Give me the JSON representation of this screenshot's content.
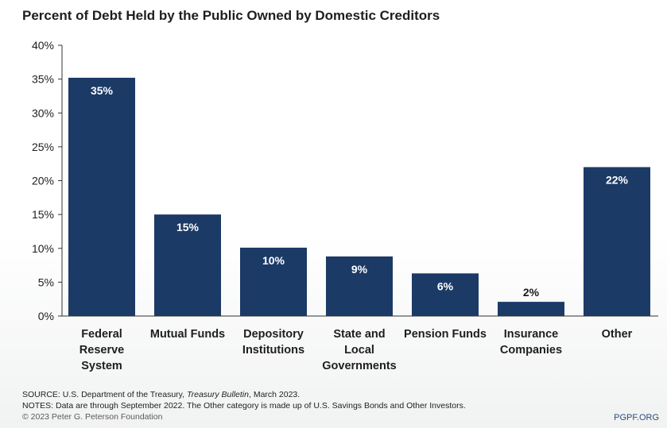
{
  "chart_data": {
    "type": "bar",
    "title": "Percent of Debt Held by the Public Owned by Domestic Creditors",
    "categories": [
      [
        "Federal",
        "Reserve",
        "System"
      ],
      [
        "Mutual Funds"
      ],
      [
        "Depository",
        "Institutions"
      ],
      [
        "State and",
        "Local",
        "Governments"
      ],
      [
        "Pension Funds"
      ],
      [
        "Insurance",
        "Companies"
      ],
      [
        "Other"
      ]
    ],
    "values": [
      35.2,
      15,
      10.1,
      8.8,
      6.3,
      2.1,
      22
    ],
    "data_labels": [
      "35%",
      "15%",
      "10%",
      "9%",
      "6%",
      "2%",
      "22%"
    ],
    "yticks": [
      "0%",
      "5%",
      "10%",
      "15%",
      "20%",
      "25%",
      "30%",
      "35%",
      "40%"
    ],
    "ylim": [
      0,
      40
    ],
    "xlabel": "",
    "ylabel": "",
    "grid": false,
    "bar_color": "#1b3a66",
    "label_color_inside": "#ffffff",
    "label_color_outside": "#1a1a1a"
  },
  "footer": {
    "source_prefix": "SOURCE: U.S. Department of the Treasury, ",
    "source_italic": "Treasury Bulletin",
    "source_suffix": ", March 2023.",
    "notes": "NOTES: Data are through September 2022. The Other category is made up of U.S. Savings Bonds and Other Investors.",
    "copyright": "© 2023 Peter G. Peterson Foundation",
    "site": "PGPF.ORG"
  }
}
